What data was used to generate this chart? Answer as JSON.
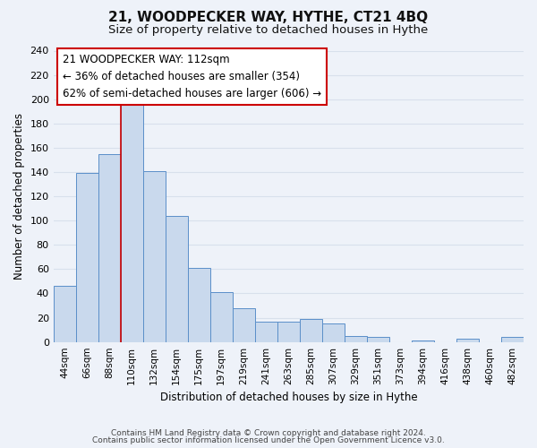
{
  "title": "21, WOODPECKER WAY, HYTHE, CT21 4BQ",
  "subtitle": "Size of property relative to detached houses in Hythe",
  "xlabel": "Distribution of detached houses by size in Hythe",
  "ylabel": "Number of detached properties",
  "footer_lines": [
    "Contains HM Land Registry data © Crown copyright and database right 2024.",
    "Contains public sector information licensed under the Open Government Licence v3.0."
  ],
  "bar_labels": [
    "44sqm",
    "66sqm",
    "88sqm",
    "110sqm",
    "132sqm",
    "154sqm",
    "175sqm",
    "197sqm",
    "219sqm",
    "241sqm",
    "263sqm",
    "285sqm",
    "307sqm",
    "329sqm",
    "351sqm",
    "373sqm",
    "394sqm",
    "416sqm",
    "438sqm",
    "460sqm",
    "482sqm"
  ],
  "bar_values": [
    46,
    139,
    155,
    198,
    141,
    104,
    61,
    41,
    28,
    17,
    17,
    19,
    15,
    5,
    4,
    0,
    1,
    0,
    3,
    0,
    4
  ],
  "bar_color": "#c9d9ed",
  "bar_edge_color": "#5b8fc9",
  "ylim": [
    0,
    240
  ],
  "yticks": [
    0,
    20,
    40,
    60,
    80,
    100,
    120,
    140,
    160,
    180,
    200,
    220,
    240
  ],
  "annotation_line1": "21 WOODPECKER WAY: 112sqm",
  "annotation_line2": "← 36% of detached houses are smaller (354)",
  "annotation_line3": "62% of semi-detached houses are larger (606) →",
  "red_line_index": 3,
  "bg_color": "#eef2f9",
  "grid_color": "#d8e0ec",
  "annotation_fontsize": 8.5,
  "title_fontsize": 11,
  "subtitle_fontsize": 9.5
}
